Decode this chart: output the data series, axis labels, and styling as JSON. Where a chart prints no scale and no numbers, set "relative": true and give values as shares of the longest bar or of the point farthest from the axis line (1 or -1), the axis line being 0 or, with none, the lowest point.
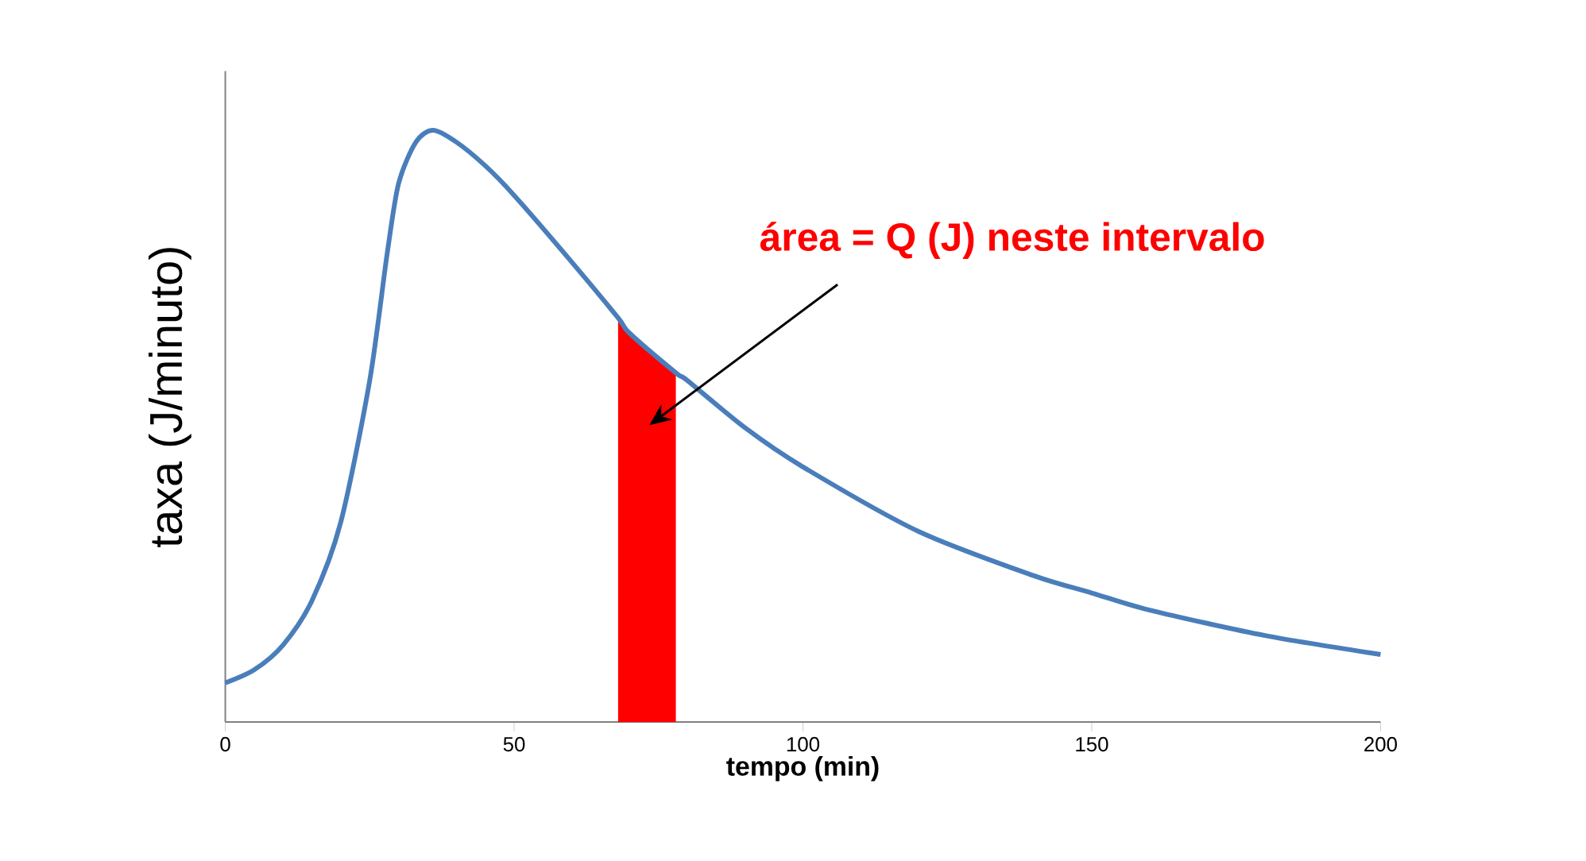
{
  "chart_data": {
    "type": "line",
    "relative": true,
    "xlabel": "tempo (min)",
    "ylabel": "taxa (J/minuto)",
    "xlim": [
      0,
      200
    ],
    "xticks": [
      0,
      50,
      100,
      150,
      200
    ],
    "annotations": [
      "área = Q (J) neste intervalo"
    ],
    "series": [
      {
        "color": "#4a7ebb",
        "x": [
          0,
          5,
          10,
          15,
          20,
          25,
          28,
          30,
          33,
          36,
          40,
          45,
          50,
          60,
          68,
          70,
          78,
          80,
          90,
          100,
          120,
          140,
          150,
          160,
          180,
          200
        ],
        "values": [
          0.066,
          0.088,
          0.13,
          0.205,
          0.338,
          0.577,
          0.79,
          0.91,
          0.98,
          1,
          0.98,
          0.94,
          0.89,
          0.777,
          0.683,
          0.657,
          0.59,
          0.577,
          0.497,
          0.431,
          0.322,
          0.247,
          0.218,
          0.189,
          0.146,
          0.114
        ]
      },
      {
        "type": "area",
        "color": "#ff0000",
        "x": [
          68,
          70,
          74,
          78
        ],
        "values": [
          0.683,
          0.66,
          0.625,
          0.59
        ]
      }
    ]
  }
}
